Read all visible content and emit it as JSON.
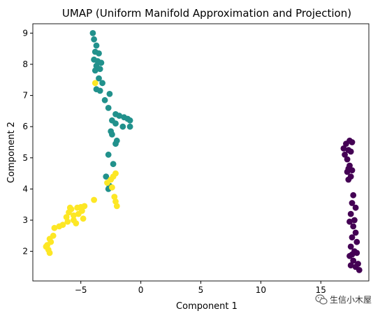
{
  "chart_data": {
    "type": "scatter",
    "title": "UMAP (Uniform Manifold Approximation and Projection)",
    "xlabel": "Component 1",
    "ylabel": "Component 2",
    "xlim": [
      -9.0,
      19.0
    ],
    "ylim": [
      1.05,
      9.3
    ],
    "xticks": [
      -5,
      0,
      5,
      10,
      15
    ],
    "yticks": [
      2,
      3,
      4,
      5,
      6,
      7,
      8,
      9
    ],
    "grid": false,
    "legend": "none",
    "series": [
      {
        "color": "#440154",
        "points": [
          [
            16.9,
            5.3
          ],
          [
            17.1,
            5.45
          ],
          [
            17.4,
            5.55
          ],
          [
            17.6,
            5.5
          ],
          [
            17.3,
            5.25
          ],
          [
            17.0,
            5.1
          ],
          [
            17.5,
            5.2
          ],
          [
            17.2,
            4.95
          ],
          [
            17.4,
            4.75
          ],
          [
            17.6,
            4.6
          ],
          [
            17.2,
            4.55
          ],
          [
            17.5,
            4.4
          ],
          [
            17.3,
            4.3
          ],
          [
            17.7,
            3.8
          ],
          [
            17.6,
            3.55
          ],
          [
            17.9,
            3.4
          ],
          [
            17.5,
            3.2
          ],
          [
            17.8,
            3.0
          ],
          [
            17.4,
            2.95
          ],
          [
            17.7,
            2.8
          ],
          [
            17.9,
            2.6
          ],
          [
            17.6,
            2.45
          ],
          [
            18.0,
            2.3
          ],
          [
            17.5,
            2.15
          ],
          [
            17.8,
            2.0
          ],
          [
            17.6,
            1.9
          ],
          [
            18.0,
            1.95
          ],
          [
            17.4,
            1.85
          ],
          [
            17.7,
            1.7
          ],
          [
            18.1,
            1.6
          ],
          [
            17.5,
            1.55
          ],
          [
            18.2,
            1.4
          ],
          [
            17.9,
            1.5
          ],
          [
            17.3,
            4.65
          ]
        ]
      },
      {
        "color": "#21918c",
        "points": [
          [
            -4.0,
            9.0
          ],
          [
            -3.9,
            8.8
          ],
          [
            -3.7,
            8.6
          ],
          [
            -3.8,
            8.4
          ],
          [
            -3.5,
            8.35
          ],
          [
            -3.9,
            8.15
          ],
          [
            -3.6,
            8.1
          ],
          [
            -3.3,
            8.05
          ],
          [
            -3.7,
            7.95
          ],
          [
            -3.4,
            7.85
          ],
          [
            -3.8,
            7.8
          ],
          [
            -3.5,
            7.55
          ],
          [
            -3.2,
            7.4
          ],
          [
            -3.7,
            7.2
          ],
          [
            -3.4,
            7.15
          ],
          [
            -2.6,
            7.05
          ],
          [
            -3.0,
            6.85
          ],
          [
            -2.7,
            6.6
          ],
          [
            -2.1,
            6.4
          ],
          [
            -1.8,
            6.35
          ],
          [
            -1.4,
            6.3
          ],
          [
            -1.1,
            6.25
          ],
          [
            -0.9,
            6.2
          ],
          [
            -2.4,
            6.2
          ],
          [
            -2.1,
            6.1
          ],
          [
            -0.9,
            6.0
          ],
          [
            -1.5,
            6.0
          ],
          [
            -2.5,
            5.85
          ],
          [
            -2.4,
            5.75
          ],
          [
            -2.0,
            5.55
          ],
          [
            -2.1,
            5.45
          ],
          [
            -2.7,
            5.1
          ],
          [
            -2.3,
            4.8
          ],
          [
            -2.9,
            4.4
          ],
          [
            -2.6,
            4.1
          ],
          [
            -2.7,
            4.0
          ]
        ]
      },
      {
        "color": "#fde725",
        "points": [
          [
            -3.8,
            7.4
          ],
          [
            -2.1,
            4.5
          ],
          [
            -2.3,
            4.4
          ],
          [
            -2.5,
            4.3
          ],
          [
            -2.8,
            4.2
          ],
          [
            -2.4,
            4.05
          ],
          [
            -2.2,
            3.75
          ],
          [
            -2.1,
            3.6
          ],
          [
            -2.0,
            3.45
          ],
          [
            -3.9,
            3.65
          ],
          [
            -4.7,
            3.45
          ],
          [
            -5.0,
            3.42
          ],
          [
            -5.3,
            3.4
          ],
          [
            -5.8,
            3.35
          ],
          [
            -4.9,
            3.3
          ],
          [
            -5.2,
            3.2
          ],
          [
            -5.6,
            3.15
          ],
          [
            -6.2,
            3.1
          ],
          [
            -4.8,
            3.05
          ],
          [
            -5.6,
            3.0
          ],
          [
            -6.1,
            2.95
          ],
          [
            -5.4,
            2.9
          ],
          [
            -6.5,
            2.85
          ],
          [
            -6.8,
            2.8
          ],
          [
            -7.2,
            2.75
          ],
          [
            -7.3,
            2.5
          ],
          [
            -7.6,
            2.4
          ],
          [
            -7.5,
            2.3
          ],
          [
            -7.8,
            2.2
          ],
          [
            -7.9,
            2.15
          ],
          [
            -7.7,
            2.05
          ],
          [
            -7.6,
            1.95
          ],
          [
            -5.9,
            3.4
          ],
          [
            -6.0,
            3.25
          ]
        ]
      }
    ]
  },
  "watermark": {
    "icon": "wechat-icon",
    "text": "生信小木屋"
  }
}
